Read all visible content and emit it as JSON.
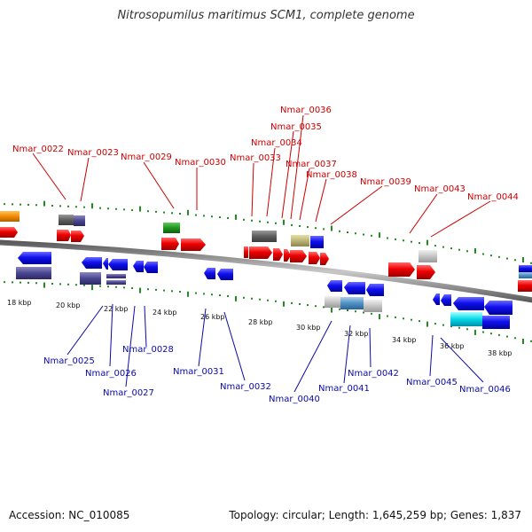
{
  "title": "Nitrosopumilus maritimus SCM1, complete genome",
  "footer": {
    "accession": "Accession: NC_010085",
    "topology": "Topology: circular; Length: 1,645,259 bp; Genes: 1,837"
  },
  "colors": {
    "forward_label": "#cc0000",
    "reverse_label": "#0a0aa8",
    "tick": "#228b22",
    "backbone": "#8a8a8a"
  },
  "scale": {
    "unit": "kbp",
    "labels": [
      "18 kbp",
      "20 kbp",
      "22 kbp",
      "24 kbp",
      "26 kbp",
      "28 kbp",
      "30 kbp",
      "32 kbp",
      "34 kbp",
      "36 kbp",
      "38 kbp"
    ]
  },
  "forward_labels": [
    "Nmar_0022",
    "Nmar_0023",
    "Nmar_0029",
    "Nmar_0030",
    "Nmar_0033",
    "Nmar_0034",
    "Nmar_0035",
    "Nmar_0036",
    "Nmar_0037",
    "Nmar_0038",
    "Nmar_0039",
    "Nmar_0043",
    "Nmar_0044"
  ],
  "reverse_labels": [
    "Nmar_0025",
    "Nmar_0026",
    "Nmar_0027",
    "Nmar_0028",
    "Nmar_0031",
    "Nmar_0032",
    "Nmar_0040",
    "Nmar_0041",
    "Nmar_0042",
    "Nmar_0045",
    "Nmar_0046"
  ]
}
